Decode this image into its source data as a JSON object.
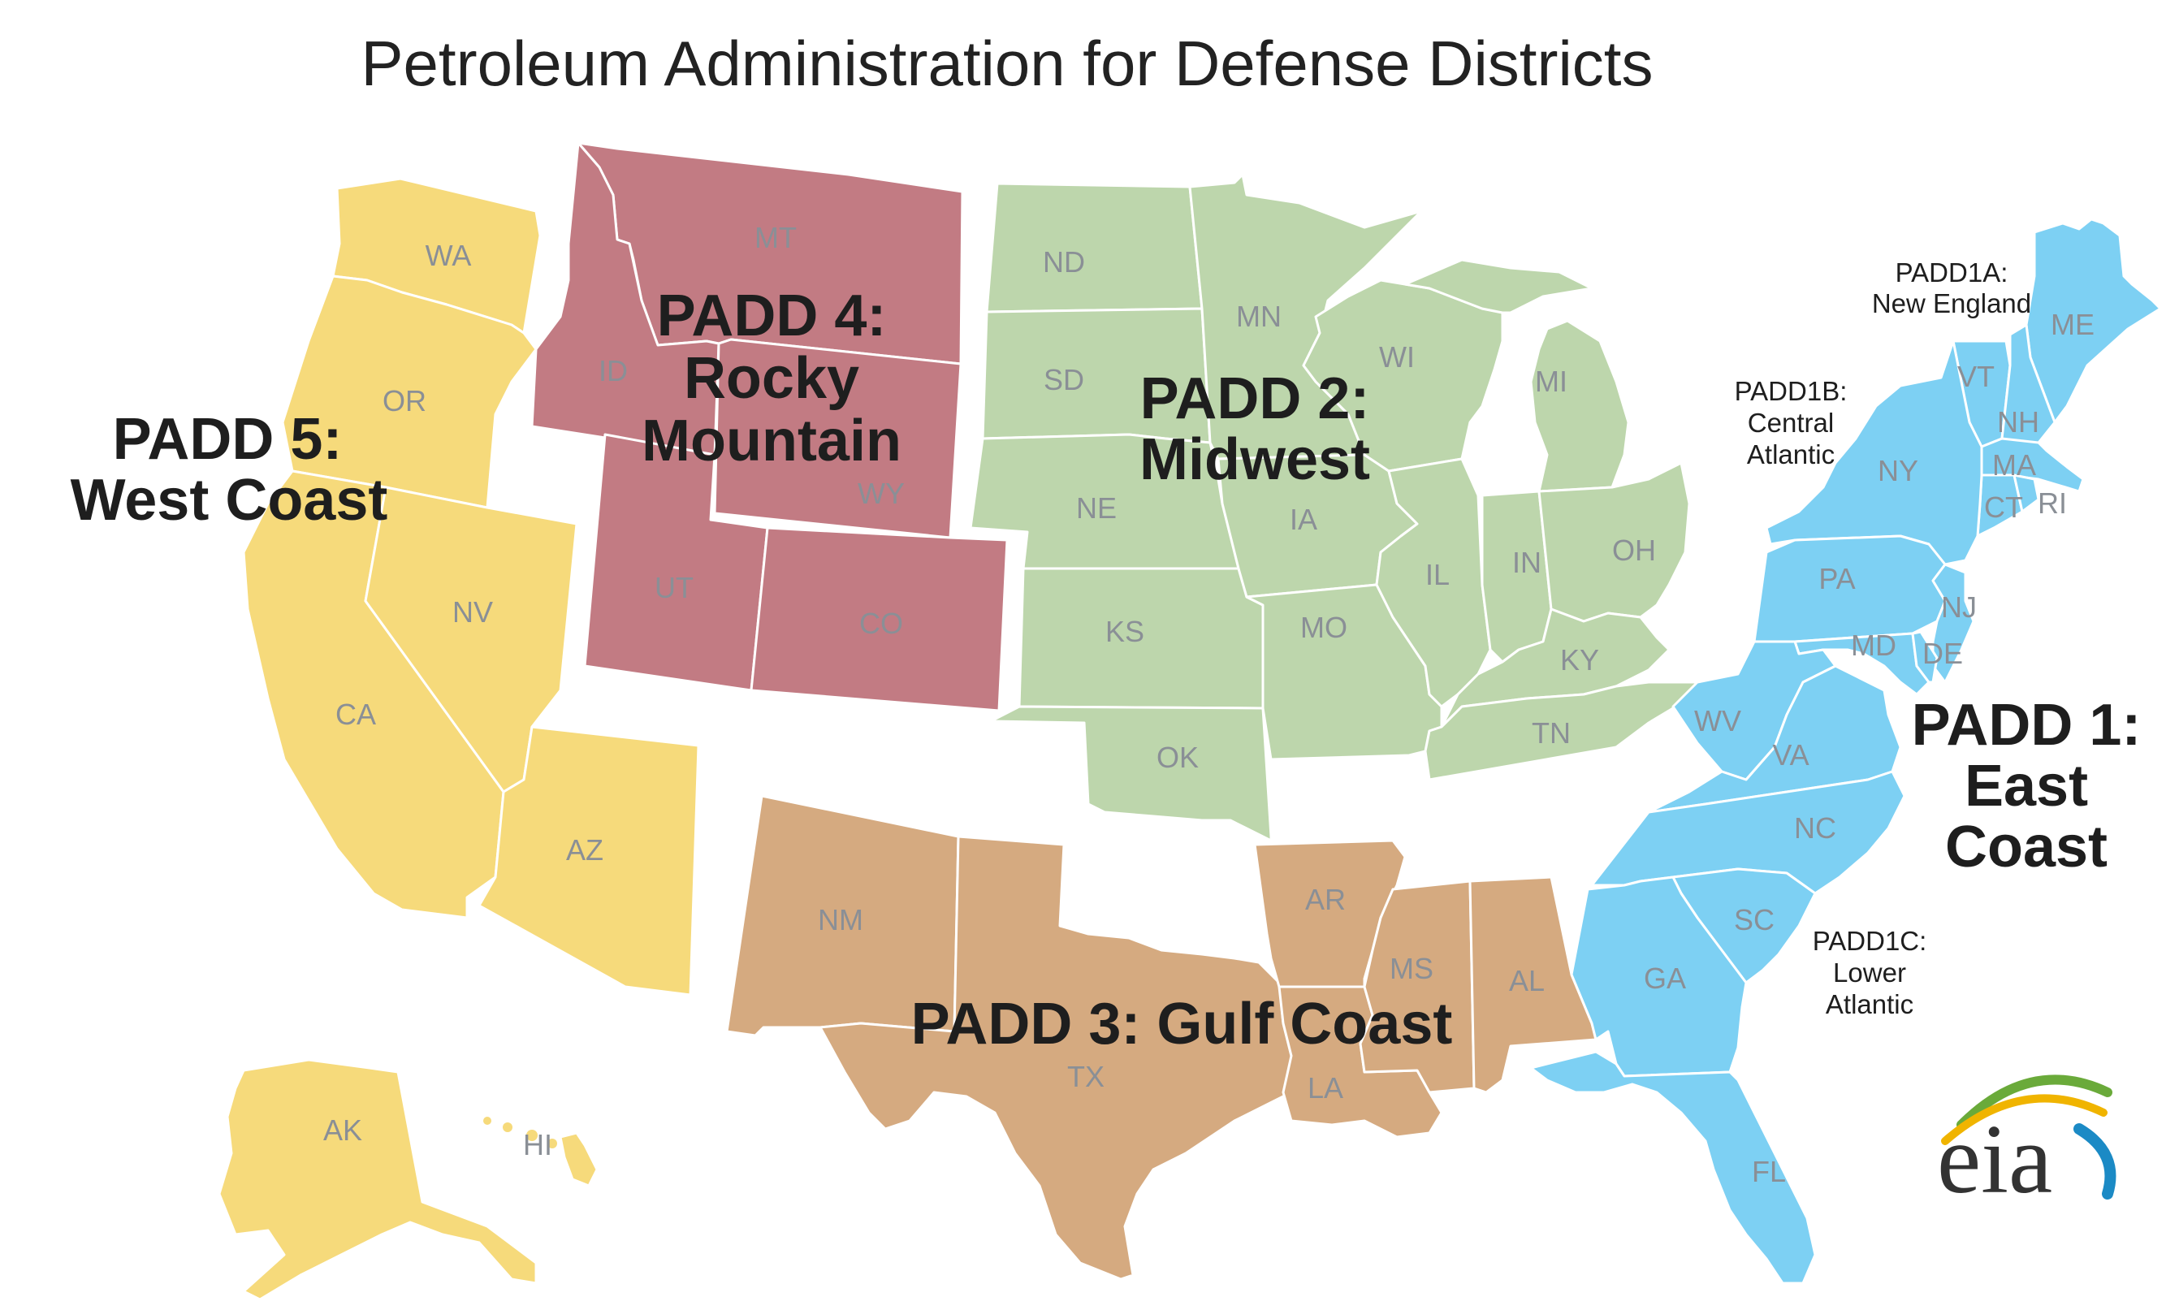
{
  "title": "Petroleum Administration for Defense Districts",
  "colors": {
    "padd1": "#7dd0f3",
    "padd2": "#bdd6ac",
    "padd3": "#d5aa80",
    "padd4": "#c27b83",
    "padd5": "#f6da7b"
  },
  "padds": {
    "p1": {
      "line1": "PADD 1:",
      "line2": "East",
      "line3": "Coast"
    },
    "p2": {
      "line1": "PADD 2:",
      "line2": "Midwest"
    },
    "p3": {
      "line1": "PADD 3: Gulf Coast"
    },
    "p4": {
      "line1": "PADD 4:",
      "line2": "Rocky",
      "line3": "Mountain"
    },
    "p5": {
      "line1": "PADD 5:",
      "line2": "West Coast"
    }
  },
  "subdistricts": {
    "a": {
      "line1": "PADD1A:",
      "line2": "New England"
    },
    "b": {
      "line1": "PADD1B:",
      "line2": "Central",
      "line3": "Atlantic"
    },
    "c": {
      "line1": "PADD1C:",
      "line2": "Lower",
      "line3": "Atlantic"
    }
  },
  "states": {
    "WA": "WA",
    "OR": "OR",
    "CA": "CA",
    "NV": "NV",
    "AZ": "AZ",
    "AK": "AK",
    "HI": "HI",
    "MT": "MT",
    "ID": "ID",
    "WY": "WY",
    "UT": "UT",
    "CO": "CO",
    "ND": "ND",
    "SD": "SD",
    "NE": "NE",
    "KS": "KS",
    "OK": "OK",
    "MN": "MN",
    "IA": "IA",
    "MO": "MO",
    "WI": "WI",
    "IL": "IL",
    "MI": "MI",
    "IN": "IN",
    "OH": "OH",
    "KY": "KY",
    "TN": "TN",
    "NM": "NM",
    "TX": "TX",
    "AR": "AR",
    "LA": "LA",
    "MS": "MS",
    "AL": "AL",
    "ME": "ME",
    "VT": "VT",
    "NH": "NH",
    "MA": "MA",
    "CT": "CT",
    "RI": "RI",
    "NY": "NY",
    "PA": "PA",
    "NJ": "NJ",
    "MD": "MD",
    "DE": "DE",
    "WV": "WV",
    "VA": "VA",
    "NC": "NC",
    "SC": "SC",
    "GA": "GA",
    "FL": "FL"
  },
  "logo": {
    "text": "eia"
  }
}
